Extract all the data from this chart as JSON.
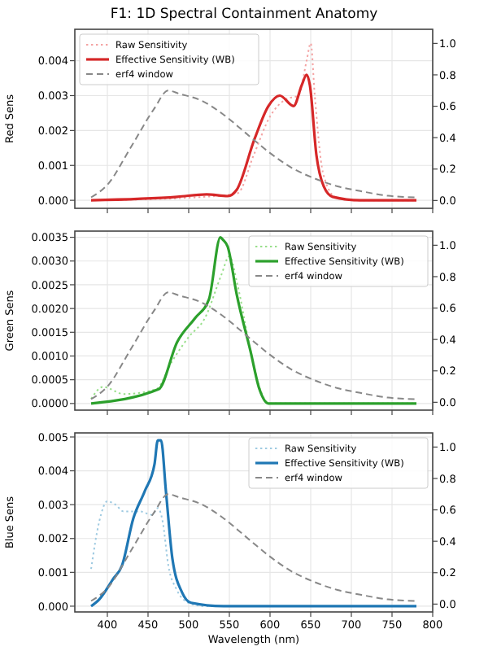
{
  "chart_data": [
    {
      "type": "line",
      "title": "F1: 1D Spectral Containment Anatomy",
      "ylabel": "Red Sens",
      "xlim": [
        360,
        800
      ],
      "xticks": [
        400,
        450,
        500,
        550,
        600,
        650,
        700,
        750,
        800
      ],
      "ylim": [
        -0.00023,
        0.0049
      ],
      "yticks": [
        {
          "value": 0,
          "label": "0.000"
        },
        {
          "value": 0.001,
          "label": "0.001"
        },
        {
          "value": 0.002,
          "label": "0.002"
        },
        {
          "value": 0.003,
          "label": "0.003"
        },
        {
          "value": 0.004,
          "label": "0.004"
        }
      ],
      "y2lim": [
        -0.05,
        1.09
      ],
      "y2ticks": [
        {
          "value": 0,
          "label": "0.0"
        },
        {
          "value": 0.2,
          "label": "0.2"
        },
        {
          "value": 0.4,
          "label": "0.4"
        },
        {
          "value": 0.6,
          "label": "0.6"
        },
        {
          "value": 0.8,
          "label": "0.8"
        },
        {
          "value": 1,
          "label": "1.0"
        }
      ],
      "grid": true,
      "legend": "top left",
      "tick_labels": "y",
      "marker": "none",
      "series": [
        {
          "name": "Raw Sensitivity",
          "color": "#f4a3a3",
          "line_style": "dotted",
          "x": [
            380,
            520,
            560,
            580,
            600,
            620,
            635,
            645,
            650,
            655,
            665,
            680,
            700,
            780
          ],
          "values": [
            0,
            0.0001,
            0.0002,
            0.0013,
            0.0024,
            0.0029,
            0.003,
            0.004,
            0.0045,
            0.003,
            0.0008,
            0.0001,
            0,
            0
          ]
        },
        {
          "name": "Effective Sensitivity (WB)",
          "color": "#d62728",
          "line_style": "solid",
          "x": [
            380,
            486,
            522,
            548,
            559,
            581,
            598,
            612,
            629,
            639,
            645,
            649,
            657,
            666,
            677,
            711,
            780
          ],
          "values": [
            0,
            0.0001,
            0.00017,
            0.00012,
            0.0003,
            0.00176,
            0.0027,
            0.003,
            0.0027,
            0.0033,
            0.0036,
            0.0033,
            0.0013,
            0.0004,
            0.0001,
            0,
            0
          ]
        },
        {
          "name": "erf4 window",
          "color": "#888888",
          "line_style": "dashed",
          "axis": "y2",
          "x": [
            380,
            400,
            429,
            457,
            475,
            488,
            514,
            542,
            570,
            598,
            626,
            655,
            683,
            711,
            745,
            780
          ],
          "values": [
            0.02,
            0.1,
            0.34,
            0.58,
            0.7,
            0.68,
            0.64,
            0.55,
            0.43,
            0.31,
            0.21,
            0.14,
            0.09,
            0.06,
            0.03,
            0.02
          ]
        }
      ]
    },
    {
      "type": "line",
      "ylabel": "Green Sens",
      "xlim": [
        360,
        800
      ],
      "xticks": [
        400,
        450,
        500,
        550,
        600,
        650,
        700,
        750,
        800
      ],
      "ylim": [
        -0.00014,
        0.00363
      ],
      "yticks": [
        {
          "value": 0,
          "label": "0.0000"
        },
        {
          "value": 0.0005,
          "label": "0.0005"
        },
        {
          "value": 0.001,
          "label": "0.0010"
        },
        {
          "value": 0.0015,
          "label": "0.0015"
        },
        {
          "value": 0.002,
          "label": "0.0020"
        },
        {
          "value": 0.0025,
          "label": "0.0025"
        },
        {
          "value": 0.003,
          "label": "0.0030"
        },
        {
          "value": 0.0035,
          "label": "0.0035"
        }
      ],
      "y2lim": [
        -0.05,
        1.09
      ],
      "y2ticks": [
        {
          "value": 0,
          "label": "0.0"
        },
        {
          "value": 0.2,
          "label": "0.2"
        },
        {
          "value": 0.4,
          "label": "0.4"
        },
        {
          "value": 0.6,
          "label": "0.6"
        },
        {
          "value": 0.8,
          "label": "0.8"
        },
        {
          "value": 1,
          "label": "1.0"
        }
      ],
      "grid": true,
      "legend": "top right",
      "tick_labels": "y",
      "marker": "none",
      "series": [
        {
          "name": "Raw Sensitivity",
          "color": "#98df8a",
          "line_style": "dotted",
          "x": [
            380,
            395,
            420,
            460,
            480,
            500,
            520,
            540,
            550,
            560,
            575,
            590,
            600,
            780
          ],
          "values": [
            0.0001,
            0.00035,
            0.0002,
            0.0003,
            0.0009,
            0.0014,
            0.0018,
            0.0027,
            0.0031,
            0.0025,
            0.0012,
            0.0002,
            0,
            0
          ]
        },
        {
          "name": "Effective Sensitivity (WB)",
          "color": "#2ca02c",
          "line_style": "solid",
          "x": [
            380,
            463,
            486,
            508,
            525,
            539,
            542,
            548,
            559,
            576,
            587,
            598,
            780
          ],
          "values": [
            0,
            0.0003,
            0.0013,
            0.0018,
            0.0022,
            0.0035,
            0.00345,
            0.0033,
            0.0023,
            0.0011,
            0.0003,
            0,
            0
          ]
        },
        {
          "name": "erf4 window",
          "color": "#888888",
          "line_style": "dashed",
          "axis": "y2",
          "x": [
            380,
            400,
            429,
            457,
            475,
            488,
            514,
            542,
            570,
            598,
            626,
            655,
            683,
            711,
            745,
            780
          ],
          "values": [
            0.02,
            0.1,
            0.34,
            0.58,
            0.7,
            0.68,
            0.64,
            0.55,
            0.43,
            0.31,
            0.21,
            0.14,
            0.09,
            0.06,
            0.03,
            0.02
          ]
        }
      ]
    },
    {
      "type": "line",
      "ylabel": "Blue Sens",
      "xlabel": "Wavelength (nm)",
      "xlim": [
        360,
        800
      ],
      "xticks": [
        400,
        450,
        500,
        550,
        600,
        650,
        700,
        750,
        800
      ],
      "ylim": [
        -0.00017,
        0.00512
      ],
      "yticks": [
        {
          "value": 0,
          "label": "0.000"
        },
        {
          "value": 0.001,
          "label": "0.001"
        },
        {
          "value": 0.002,
          "label": "0.002"
        },
        {
          "value": 0.003,
          "label": "0.003"
        },
        {
          "value": 0.004,
          "label": "0.004"
        },
        {
          "value": 0.005,
          "label": "0.005"
        }
      ],
      "y2lim": [
        -0.05,
        1.09
      ],
      "y2ticks": [
        {
          "value": 0,
          "label": "0.0"
        },
        {
          "value": 0.2,
          "label": "0.2"
        },
        {
          "value": 0.4,
          "label": "0.4"
        },
        {
          "value": 0.6,
          "label": "0.6"
        },
        {
          "value": 0.8,
          "label": "0.8"
        },
        {
          "value": 1,
          "label": "1.0"
        }
      ],
      "grid": true,
      "legend": "top right",
      "marker": "none",
      "series": [
        {
          "name": "Raw Sensitivity",
          "color": "#9ecae1",
          "line_style": "dotted",
          "x": [
            380,
            390,
            400,
            410,
            420,
            440,
            455,
            462,
            468,
            475,
            485,
            500,
            520,
            780
          ],
          "values": [
            0.0011,
            0.0025,
            0.0031,
            0.003,
            0.0028,
            0.0028,
            0.0027,
            0.0029,
            0.0025,
            0.0012,
            0.0005,
            0.0001,
            0,
            0
          ]
        },
        {
          "name": "Effective Sensitivity (WB)",
          "color": "#1f77b4",
          "line_style": "solid",
          "x": [
            380,
            390,
            407,
            418,
            432,
            446,
            458,
            462,
            466,
            472,
            480,
            492,
            503,
            543,
            780
          ],
          "values": [
            0,
            0.0002,
            0.0008,
            0.0012,
            0.0026,
            0.0034,
            0.0042,
            0.0049,
            0.0049,
            0.0034,
            0.0014,
            0.0004,
            0.0001,
            0,
            0
          ]
        },
        {
          "name": "erf4 window",
          "color": "#888888",
          "line_style": "dashed",
          "axis": "y2",
          "x": [
            380,
            400,
            429,
            457,
            475,
            488,
            514,
            542,
            570,
            598,
            626,
            655,
            683,
            711,
            745,
            780
          ],
          "values": [
            0.02,
            0.1,
            0.34,
            0.58,
            0.7,
            0.68,
            0.64,
            0.55,
            0.43,
            0.31,
            0.21,
            0.14,
            0.09,
            0.06,
            0.03,
            0.02
          ]
        }
      ]
    }
  ]
}
